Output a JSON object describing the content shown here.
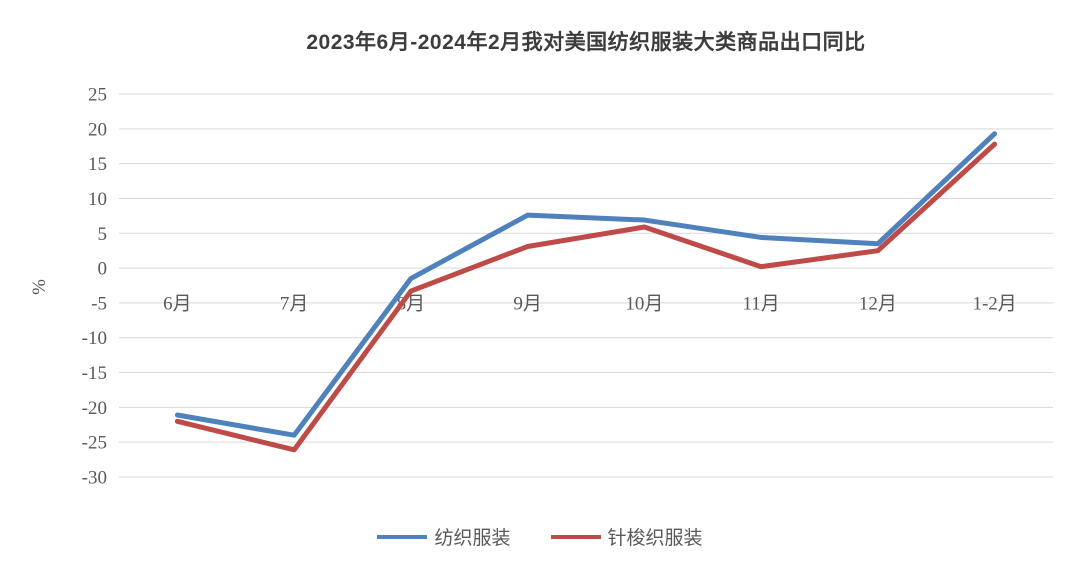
{
  "chart_data": {
    "type": "line",
    "title": "2023年6月-2024年2月我对美国纺织服装大类商品出口同比",
    "ylabel": "%",
    "xlabel": "",
    "categories": [
      "6月",
      "7月",
      "8月",
      "9月",
      "10月",
      "11月",
      "12月",
      "1-2月"
    ],
    "series": [
      {
        "name": "纺织服装",
        "color": "#4F81BD",
        "values": [
          -21.1,
          -24.0,
          -1.5,
          7.6,
          6.9,
          4.4,
          3.5,
          19.3
        ]
      },
      {
        "name": "针梭织服装",
        "color": "#BE4B48",
        "values": [
          -22.0,
          -26.1,
          -3.3,
          3.1,
          5.9,
          0.2,
          2.5,
          17.8
        ]
      }
    ],
    "ylim": [
      -30,
      25
    ],
    "yticks": [
      25,
      20,
      15,
      10,
      5,
      0,
      -5,
      -10,
      -15,
      -20,
      -25,
      -30
    ],
    "grid": "horizontal-only",
    "legend_position": "bottom",
    "colors": {
      "gridline": "#d9d9d9",
      "tick_text": "#595959",
      "title_text": "#3d3d3d",
      "background": "#ffffff"
    }
  }
}
